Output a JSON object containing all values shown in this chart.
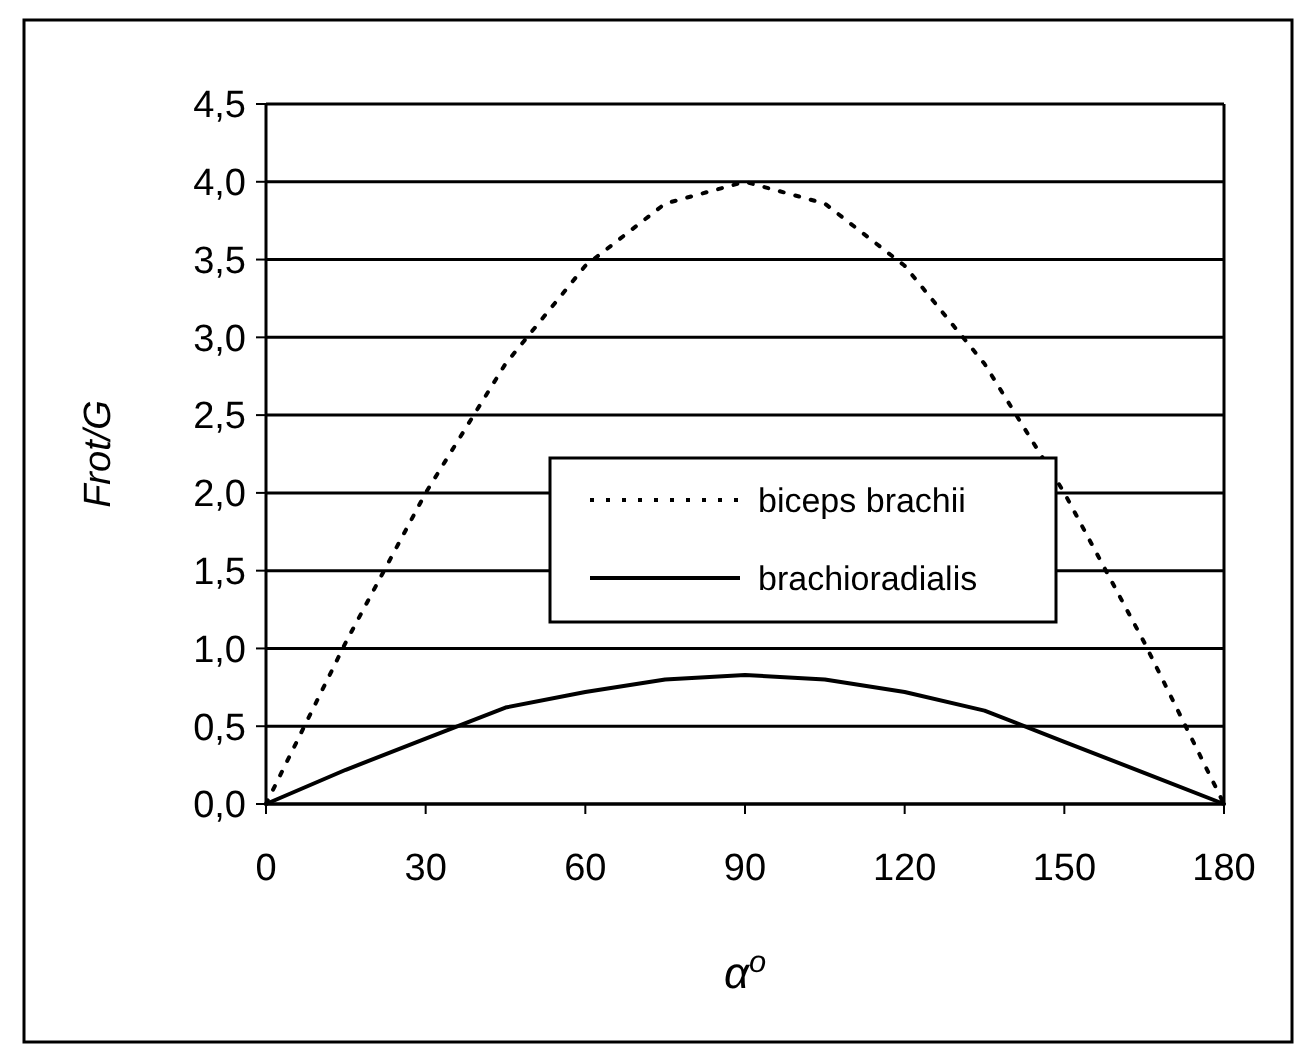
{
  "chart_data": {
    "type": "line",
    "xlabel": "α$^{o}$",
    "ylabel": "Frot/G",
    "x": [
      0,
      15,
      30,
      45,
      60,
      75,
      90,
      105,
      120,
      135,
      150,
      165,
      180
    ],
    "series": [
      {
        "name": "biceps brachii",
        "color": "#000000",
        "line_style": "dotted",
        "values": [
          0,
          1.04,
          2.0,
          2.83,
          3.46,
          3.86,
          4.0,
          3.86,
          3.46,
          2.83,
          2.0,
          1.04,
          0
        ]
      },
      {
        "name": "brachioradialis",
        "color": "#000000",
        "line_style": "solid",
        "values": [
          0,
          0.22,
          0.42,
          0.62,
          0.72,
          0.8,
          0.83,
          0.8,
          0.72,
          0.6,
          0.4,
          0.2,
          0
        ]
      }
    ],
    "xlim": [
      0,
      180
    ],
    "xticks": [
      0,
      30,
      60,
      90,
      120,
      150,
      180
    ],
    "ylim": [
      0,
      4.5
    ],
    "yticks": [
      {
        "value": 0,
        "label": "0,0"
      },
      {
        "value": 0.5,
        "label": "0,5"
      },
      {
        "value": 1,
        "label": "1,0"
      },
      {
        "value": 1.5,
        "label": "1,5"
      },
      {
        "value": 2,
        "label": "2,0"
      },
      {
        "value": 2.5,
        "label": "2,5"
      },
      {
        "value": 3,
        "label": "3,0"
      },
      {
        "value": 3.5,
        "label": "3,5"
      },
      {
        "value": 4,
        "label": "4,0"
      },
      {
        "value": 4.5,
        "label": "4,5"
      }
    ],
    "grid": "y",
    "legend": "center"
  }
}
